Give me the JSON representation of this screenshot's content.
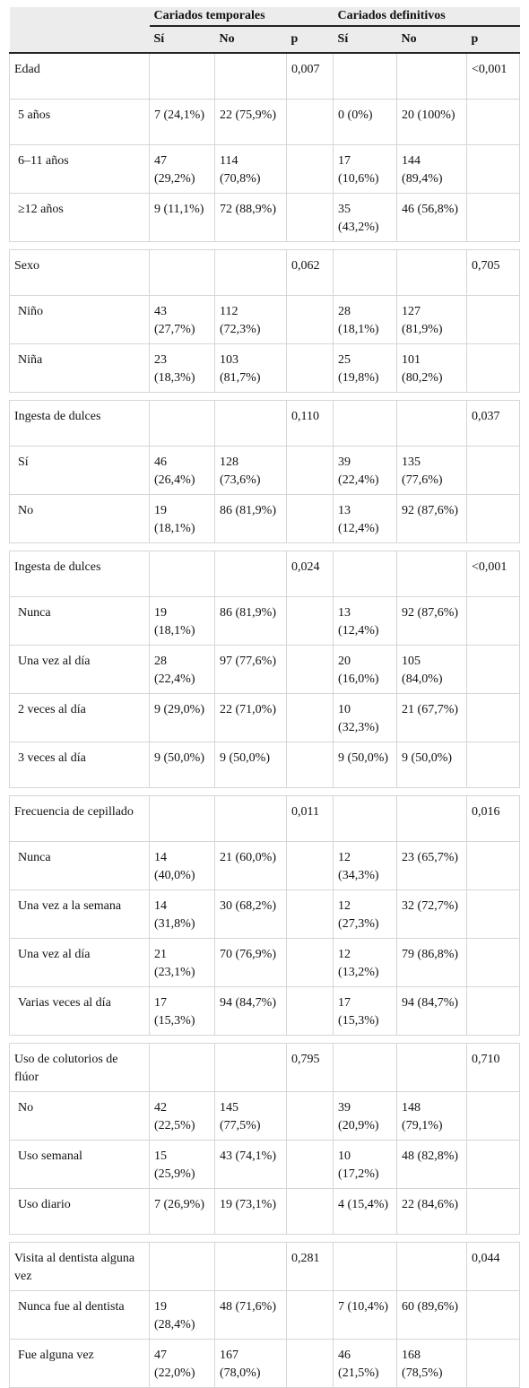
{
  "header": {
    "group_temporales": "Cariados temporales",
    "group_definitivos": "Cariados definitivos",
    "col_si": "Sí",
    "col_no": "No",
    "col_p": "p"
  },
  "sections": [
    {
      "title": "Edad",
      "p_temp": "0,007",
      "p_def": "<0,001",
      "rows": [
        {
          "label": "5 años",
          "temp_si": "7 (24,1%)",
          "temp_no": "22 (75,9%)",
          "def_si": "0 (0%)",
          "def_no": "20 (100%)"
        },
        {
          "label": "6–11 años",
          "temp_si": "47 (29,2%)",
          "temp_no": "114 (70,8%)",
          "def_si": "17 (10,6%)",
          "def_no": "144 (89,4%)"
        },
        {
          "label": "≥12 años",
          "temp_si": "9 (11,1%)",
          "temp_no": "72 (88,9%)",
          "def_si": "35 (43,2%)",
          "def_no": "46 (56,8%)"
        }
      ]
    },
    {
      "title": "Sexo",
      "p_temp": "0,062",
      "p_def": "0,705",
      "rows": [
        {
          "label": "Niño",
          "temp_si": "43 (27,7%)",
          "temp_no": "112 (72,3%)",
          "def_si": "28 (18,1%)",
          "def_no": "127 (81,9%)"
        },
        {
          "label": "Niña",
          "temp_si": "23 (18,3%)",
          "temp_no": "103 (81,7%)",
          "def_si": "25 (19,8%)",
          "def_no": "101 (80,2%)"
        }
      ]
    },
    {
      "title": "Ingesta de dulces",
      "p_temp": "0,110",
      "p_def": "0,037",
      "rows": [
        {
          "label": "Sí",
          "temp_si": "46 (26,4%)",
          "temp_no": "128 (73,6%)",
          "def_si": "39 (22,4%)",
          "def_no": "135 (77,6%)"
        },
        {
          "label": "No",
          "temp_si": "19 (18,1%)",
          "temp_no": "86 (81,9%)",
          "def_si": "13 (12,4%)",
          "def_no": "92 (87,6%)"
        }
      ]
    },
    {
      "title": "Ingesta de dulces",
      "p_temp": "0,024",
      "p_def": "<0,001",
      "rows": [
        {
          "label": "Nunca",
          "temp_si": "19 (18,1%)",
          "temp_no": "86 (81,9%)",
          "def_si": "13 (12,4%)",
          "def_no": "92 (87,6%)"
        },
        {
          "label": "Una vez al día",
          "temp_si": "28 (22,4%)",
          "temp_no": "97 (77,6%)",
          "def_si": "20 (16,0%)",
          "def_no": "105 (84,0%)"
        },
        {
          "label": "2 veces al día",
          "temp_si": "9 (29,0%)",
          "temp_no": "22 (71,0%)",
          "def_si": "10 (32,3%)",
          "def_no": "21 (67,7%)"
        },
        {
          "label": "3 veces al día",
          "temp_si": "9 (50,0%)",
          "temp_no": "9 (50,0%)",
          "def_si": "9 (50,0%)",
          "def_no": "9 (50,0%)"
        }
      ]
    },
    {
      "title": "Frecuencia de cepillado",
      "p_temp": "0,011",
      "p_def": "0,016",
      "rows": [
        {
          "label": "Nunca",
          "temp_si": "14 (40,0%)",
          "temp_no": "21 (60,0%)",
          "def_si": "12 (34,3%)",
          "def_no": "23 (65,7%)"
        },
        {
          "label": "Una vez a la semana",
          "temp_si": "14 (31,8%)",
          "temp_no": "30 (68,2%)",
          "def_si": "12 (27,3%)",
          "def_no": "32 (72,7%)"
        },
        {
          "label": "Una vez al día",
          "temp_si": "21 (23,1%)",
          "temp_no": "70 (76,9%)",
          "def_si": "12 (13,2%)",
          "def_no": "79 (86,8%)"
        },
        {
          "label": "Varias veces al día",
          "temp_si": "17 (15,3%)",
          "temp_no": "94 (84,7%)",
          "def_si": "17 (15,3%)",
          "def_no": "94 (84,7%)"
        }
      ]
    },
    {
      "title": "Uso de colutorios de flúor",
      "p_temp": "0,795",
      "p_def": "0,710",
      "rows": [
        {
          "label": "No",
          "temp_si": "42 (22,5%)",
          "temp_no": "145 (77,5%)",
          "def_si": "39 (20,9%)",
          "def_no": "148 (79,1%)"
        },
        {
          "label": "Uso semanal",
          "temp_si": "15 (25,9%)",
          "temp_no": "43 (74,1%)",
          "def_si": "10 (17,2%)",
          "def_no": "48 (82,8%)"
        },
        {
          "label": "Uso diario",
          "temp_si": "7 (26,9%)",
          "temp_no": "19 (73,1%)",
          "def_si": "4 (15,4%)",
          "def_no": "22 (84,6%)"
        }
      ]
    },
    {
      "title": "Visita al dentista alguna vez",
      "p_temp": "0,281",
      "p_def": "0,044",
      "rows": [
        {
          "label": "Nunca fue al dentista",
          "temp_si": "19 (28,4%)",
          "temp_no": "48 (71,6%)",
          "def_si": "7 (10,4%)",
          "def_no": "60 (89,6%)"
        },
        {
          "label": "Fue alguna vez",
          "temp_si": "47 (22,0%)",
          "temp_no": "167 (78,0%)",
          "def_si": "46 (21,5%)",
          "def_no": "168 (78,5%)"
        }
      ]
    }
  ]
}
